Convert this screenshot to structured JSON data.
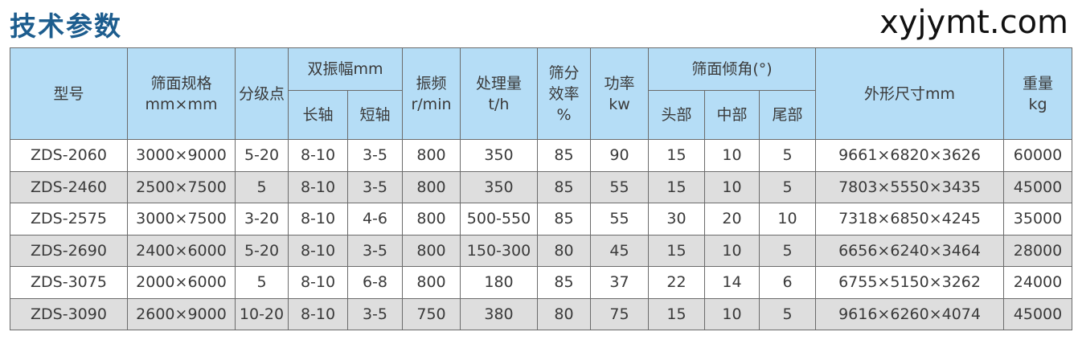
{
  "title": "技术参数",
  "watermark": "xyjymt.com",
  "header": {
    "model": "型号",
    "screen_size": [
      "筛面规格",
      "mm×mm"
    ],
    "cut_point": "分级点",
    "amplitude": "双振幅mm",
    "amplitude_long": "长轴",
    "amplitude_short": "短轴",
    "frequency": [
      "振频",
      "r/min"
    ],
    "capacity": [
      "处理量",
      "t/h"
    ],
    "efficiency": [
      "筛分",
      "效率",
      "%"
    ],
    "power": [
      "功率",
      "kw"
    ],
    "angle": "筛面倾角(°)",
    "angle_head": "头部",
    "angle_middle": "中部",
    "angle_tail": "尾部",
    "dimensions": "外形尺寸mm",
    "weight": [
      "重量",
      "kg"
    ]
  },
  "rows": [
    [
      "ZDS-2060",
      "3000×9000",
      "5-20",
      "8-10",
      "3-5",
      "800",
      "350",
      "85",
      "90",
      "15",
      "10",
      "5",
      "9661×6820×3626",
      "60000"
    ],
    [
      "ZDS-2460",
      "2500×7500",
      "5",
      "8-10",
      "3-5",
      "800",
      "350",
      "85",
      "55",
      "15",
      "10",
      "5",
      "7803×5550×3435",
      "45000"
    ],
    [
      "ZDS-2575",
      "3000×7500",
      "3-20",
      "8-10",
      "4-6",
      "800",
      "500-550",
      "85",
      "55",
      "30",
      "20",
      "10",
      "7318×6850×4245",
      "35000"
    ],
    [
      "ZDS-2690",
      "2400×6000",
      "5-20",
      "8-10",
      "3-5",
      "800",
      "150-300",
      "80",
      "45",
      "15",
      "10",
      "5",
      "6656×6240×3464",
      "28000"
    ],
    [
      "ZDS-3075",
      "2000×6000",
      "5",
      "8-10",
      "6-8",
      "800",
      "180",
      "85",
      "37",
      "22",
      "14",
      "6",
      "6755×5150×3262",
      "24000"
    ],
    [
      "ZDS-3090",
      "2600×9000",
      "10-20",
      "8-10",
      "3-5",
      "750",
      "380",
      "80",
      "75",
      "15",
      "10",
      "5",
      "9616×6260×4074",
      "45000"
    ]
  ]
}
